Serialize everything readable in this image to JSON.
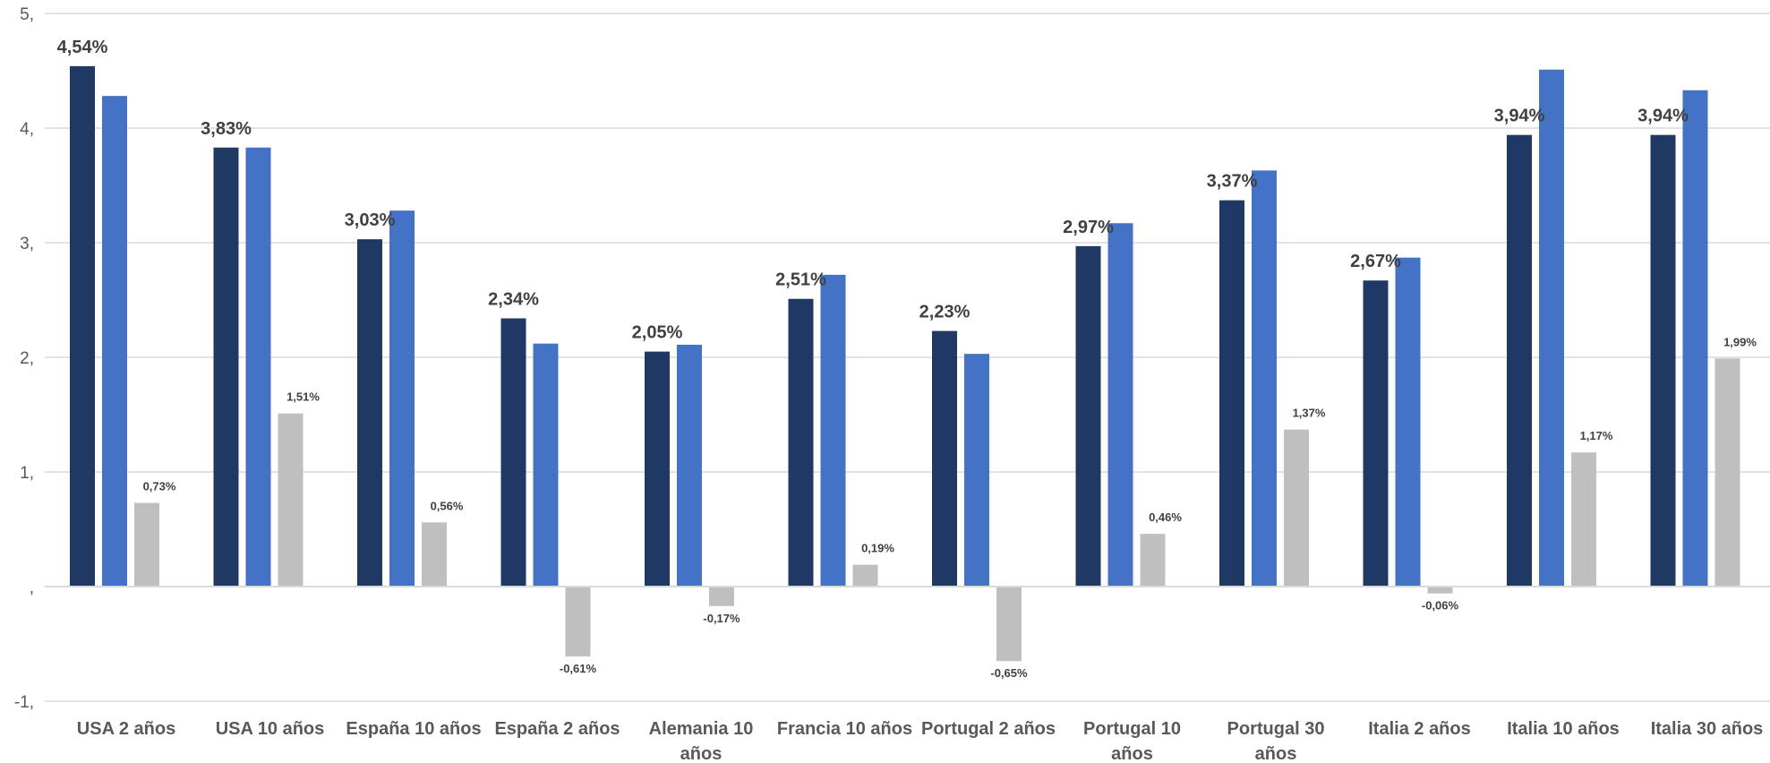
{
  "chart_data": {
    "type": "bar",
    "categories": [
      "USA 2 años",
      "USA 10 años",
      "España 10 años",
      "España 2 años",
      "Alemania 10 años",
      "Francia 10 años",
      "Portugal 2 años",
      "Portugal 10 años",
      "Portugal 30 años",
      "Italia 2 años",
      "Italia 10 años",
      "Italia 30 años"
    ],
    "category_lines": [
      [
        "USA 2 años"
      ],
      [
        "USA 10 años"
      ],
      [
        "España 10 años"
      ],
      [
        "España 2 años"
      ],
      [
        "Alemania 10",
        "años"
      ],
      [
        "Francia 10 años"
      ],
      [
        "Portugal 2 años"
      ],
      [
        "Portugal 10",
        "años"
      ],
      [
        "Portugal 30",
        "años"
      ],
      [
        "Italia 2 años"
      ],
      [
        "Italia 10 años"
      ],
      [
        "Italia 30 años"
      ]
    ],
    "series": [
      {
        "color": "#203864",
        "values": [
          4.54,
          3.83,
          3.03,
          2.34,
          2.05,
          2.51,
          2.23,
          2.97,
          3.37,
          2.67,
          3.94,
          3.94
        ],
        "labels": [
          "4,54%",
          "3,83%",
          "3,03%",
          "2,34%",
          "2,05%",
          "2,51%",
          "2,23%",
          "2,97%",
          "3,37%",
          "2,67%",
          "3,94%",
          "3,94%"
        ]
      },
      {
        "color": "#4472c4",
        "values": [
          4.28,
          3.83,
          3.28,
          2.12,
          2.11,
          2.72,
          2.03,
          3.17,
          3.63,
          2.87,
          4.51,
          4.33
        ],
        "labels": []
      },
      {
        "color": "#bfbfbf",
        "values": [
          0.73,
          1.51,
          0.56,
          -0.61,
          -0.17,
          0.19,
          -0.65,
          0.46,
          1.37,
          -0.06,
          1.17,
          1.99
        ],
        "labels": [
          "0,73%",
          "1,51%",
          "0,56%",
          "-0,61%",
          "-0,17%",
          "0,19%",
          "-0,65%",
          "0,46%",
          "1,37%",
          "-0,06%",
          "1,17%",
          "1,99%"
        ]
      }
    ],
    "yticks": [
      {
        "value": 5,
        "label": "5,"
      },
      {
        "value": 4,
        "label": "4,"
      },
      {
        "value": 3,
        "label": "3,"
      },
      {
        "value": 2,
        "label": "2,"
      },
      {
        "value": 1,
        "label": "1,"
      },
      {
        "value": 0,
        "label": ","
      },
      {
        "value": -1,
        "label": "-1,"
      }
    ],
    "ylim": [
      -1,
      5
    ],
    "grid": true,
    "title": "",
    "xlabel": "",
    "ylabel": ""
  }
}
